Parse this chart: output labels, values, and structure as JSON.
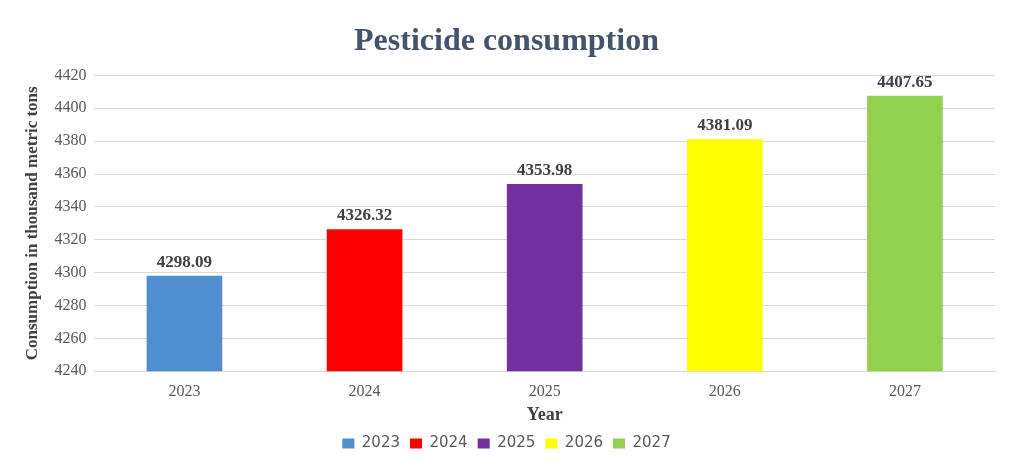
{
  "chart_data": {
    "type": "bar",
    "title": "Pesticide consumption",
    "xlabel": "Year",
    "ylabel": "Consumption in thousand metric tons",
    "categories": [
      "2023",
      "2024",
      "2025",
      "2026",
      "2027"
    ],
    "series": [
      {
        "name": "2023",
        "color": "#4f8fd0",
        "values": [
          4298.09,
          null,
          null,
          null,
          null
        ]
      },
      {
        "name": "2024",
        "color": "#ff0000",
        "values": [
          null,
          4326.32,
          null,
          null,
          null
        ]
      },
      {
        "name": "2025",
        "color": "#7030a0",
        "values": [
          null,
          null,
          4353.98,
          null,
          null
        ]
      },
      {
        "name": "2026",
        "color": "#ffff00",
        "values": [
          null,
          null,
          null,
          4381.09,
          null
        ]
      },
      {
        "name": "2027",
        "color": "#92d050",
        "values": [
          null,
          null,
          null,
          null,
          4407.65
        ]
      }
    ],
    "ylim": [
      4240,
      4420
    ],
    "yticks": [
      4240,
      4260,
      4280,
      4300,
      4320,
      4340,
      4360,
      4380,
      4400,
      4420
    ],
    "grid": "y",
    "legend": "bottom",
    "data_labels": true
  }
}
